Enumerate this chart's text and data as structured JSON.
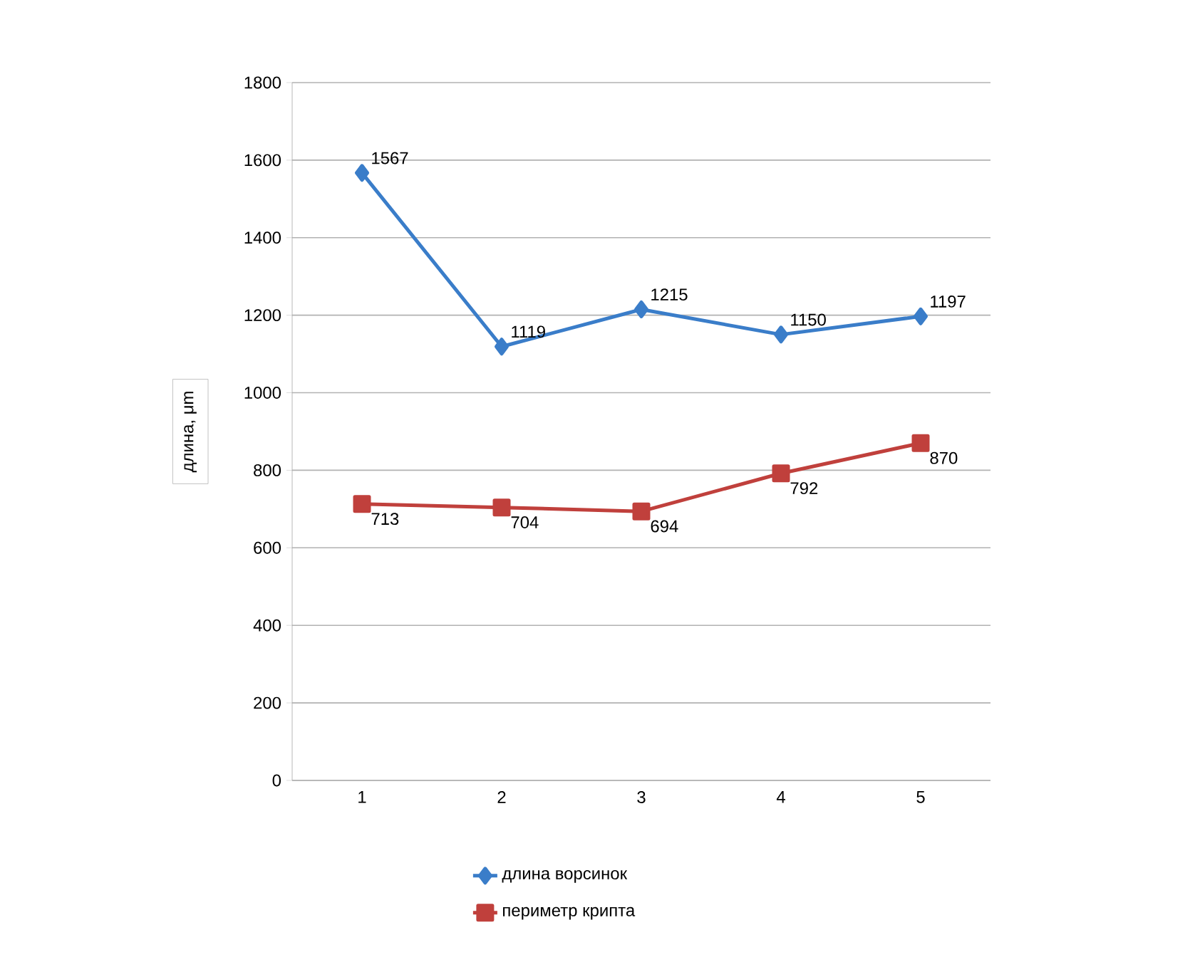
{
  "chart_data": {
    "type": "line",
    "ylabel": "длина, μm",
    "categories": [
      "1",
      "2",
      "3",
      "4",
      "5"
    ],
    "series": [
      {
        "name": "длина ворсинок",
        "color": "#3a7dc9",
        "marker": "diamond",
        "values": [
          1567,
          1119,
          1215,
          1150,
          1197
        ]
      },
      {
        "name": "периметр крипта",
        "color": "#c0403c",
        "marker": "square",
        "values": [
          713,
          704,
          694,
          792,
          870
        ]
      }
    ],
    "ylim": [
      0,
      1800
    ],
    "yticks": [
      0,
      200,
      400,
      600,
      800,
      1000,
      1200,
      1400,
      1600,
      1800
    ],
    "grid": "y",
    "legend": "bottom",
    "data_labels": true,
    "line_style": "solid"
  }
}
